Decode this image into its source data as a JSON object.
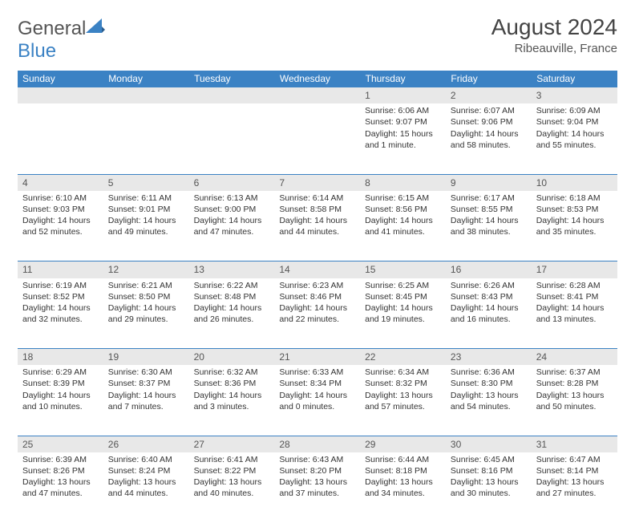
{
  "logo": {
    "text1": "General",
    "text2": "Blue"
  },
  "title": "August 2024",
  "location": "Ribeauville, France",
  "headers": [
    "Sunday",
    "Monday",
    "Tuesday",
    "Wednesday",
    "Thursday",
    "Friday",
    "Saturday"
  ],
  "colors": {
    "header_bg": "#3b82c4",
    "header_text": "#ffffff",
    "daynum_bg": "#e8e8e8",
    "border": "#3b82c4",
    "body_text": "#333333"
  },
  "weeks": [
    [
      null,
      null,
      null,
      null,
      {
        "n": "1",
        "sr": "Sunrise: 6:06 AM",
        "ss": "Sunset: 9:07 PM",
        "dl": "Daylight: 15 hours and 1 minute."
      },
      {
        "n": "2",
        "sr": "Sunrise: 6:07 AM",
        "ss": "Sunset: 9:06 PM",
        "dl": "Daylight: 14 hours and 58 minutes."
      },
      {
        "n": "3",
        "sr": "Sunrise: 6:09 AM",
        "ss": "Sunset: 9:04 PM",
        "dl": "Daylight: 14 hours and 55 minutes."
      }
    ],
    [
      {
        "n": "4",
        "sr": "Sunrise: 6:10 AM",
        "ss": "Sunset: 9:03 PM",
        "dl": "Daylight: 14 hours and 52 minutes."
      },
      {
        "n": "5",
        "sr": "Sunrise: 6:11 AM",
        "ss": "Sunset: 9:01 PM",
        "dl": "Daylight: 14 hours and 49 minutes."
      },
      {
        "n": "6",
        "sr": "Sunrise: 6:13 AM",
        "ss": "Sunset: 9:00 PM",
        "dl": "Daylight: 14 hours and 47 minutes."
      },
      {
        "n": "7",
        "sr": "Sunrise: 6:14 AM",
        "ss": "Sunset: 8:58 PM",
        "dl": "Daylight: 14 hours and 44 minutes."
      },
      {
        "n": "8",
        "sr": "Sunrise: 6:15 AM",
        "ss": "Sunset: 8:56 PM",
        "dl": "Daylight: 14 hours and 41 minutes."
      },
      {
        "n": "9",
        "sr": "Sunrise: 6:17 AM",
        "ss": "Sunset: 8:55 PM",
        "dl": "Daylight: 14 hours and 38 minutes."
      },
      {
        "n": "10",
        "sr": "Sunrise: 6:18 AM",
        "ss": "Sunset: 8:53 PM",
        "dl": "Daylight: 14 hours and 35 minutes."
      }
    ],
    [
      {
        "n": "11",
        "sr": "Sunrise: 6:19 AM",
        "ss": "Sunset: 8:52 PM",
        "dl": "Daylight: 14 hours and 32 minutes."
      },
      {
        "n": "12",
        "sr": "Sunrise: 6:21 AM",
        "ss": "Sunset: 8:50 PM",
        "dl": "Daylight: 14 hours and 29 minutes."
      },
      {
        "n": "13",
        "sr": "Sunrise: 6:22 AM",
        "ss": "Sunset: 8:48 PM",
        "dl": "Daylight: 14 hours and 26 minutes."
      },
      {
        "n": "14",
        "sr": "Sunrise: 6:23 AM",
        "ss": "Sunset: 8:46 PM",
        "dl": "Daylight: 14 hours and 22 minutes."
      },
      {
        "n": "15",
        "sr": "Sunrise: 6:25 AM",
        "ss": "Sunset: 8:45 PM",
        "dl": "Daylight: 14 hours and 19 minutes."
      },
      {
        "n": "16",
        "sr": "Sunrise: 6:26 AM",
        "ss": "Sunset: 8:43 PM",
        "dl": "Daylight: 14 hours and 16 minutes."
      },
      {
        "n": "17",
        "sr": "Sunrise: 6:28 AM",
        "ss": "Sunset: 8:41 PM",
        "dl": "Daylight: 14 hours and 13 minutes."
      }
    ],
    [
      {
        "n": "18",
        "sr": "Sunrise: 6:29 AM",
        "ss": "Sunset: 8:39 PM",
        "dl": "Daylight: 14 hours and 10 minutes."
      },
      {
        "n": "19",
        "sr": "Sunrise: 6:30 AM",
        "ss": "Sunset: 8:37 PM",
        "dl": "Daylight: 14 hours and 7 minutes."
      },
      {
        "n": "20",
        "sr": "Sunrise: 6:32 AM",
        "ss": "Sunset: 8:36 PM",
        "dl": "Daylight: 14 hours and 3 minutes."
      },
      {
        "n": "21",
        "sr": "Sunrise: 6:33 AM",
        "ss": "Sunset: 8:34 PM",
        "dl": "Daylight: 14 hours and 0 minutes."
      },
      {
        "n": "22",
        "sr": "Sunrise: 6:34 AM",
        "ss": "Sunset: 8:32 PM",
        "dl": "Daylight: 13 hours and 57 minutes."
      },
      {
        "n": "23",
        "sr": "Sunrise: 6:36 AM",
        "ss": "Sunset: 8:30 PM",
        "dl": "Daylight: 13 hours and 54 minutes."
      },
      {
        "n": "24",
        "sr": "Sunrise: 6:37 AM",
        "ss": "Sunset: 8:28 PM",
        "dl": "Daylight: 13 hours and 50 minutes."
      }
    ],
    [
      {
        "n": "25",
        "sr": "Sunrise: 6:39 AM",
        "ss": "Sunset: 8:26 PM",
        "dl": "Daylight: 13 hours and 47 minutes."
      },
      {
        "n": "26",
        "sr": "Sunrise: 6:40 AM",
        "ss": "Sunset: 8:24 PM",
        "dl": "Daylight: 13 hours and 44 minutes."
      },
      {
        "n": "27",
        "sr": "Sunrise: 6:41 AM",
        "ss": "Sunset: 8:22 PM",
        "dl": "Daylight: 13 hours and 40 minutes."
      },
      {
        "n": "28",
        "sr": "Sunrise: 6:43 AM",
        "ss": "Sunset: 8:20 PM",
        "dl": "Daylight: 13 hours and 37 minutes."
      },
      {
        "n": "29",
        "sr": "Sunrise: 6:44 AM",
        "ss": "Sunset: 8:18 PM",
        "dl": "Daylight: 13 hours and 34 minutes."
      },
      {
        "n": "30",
        "sr": "Sunrise: 6:45 AM",
        "ss": "Sunset: 8:16 PM",
        "dl": "Daylight: 13 hours and 30 minutes."
      },
      {
        "n": "31",
        "sr": "Sunrise: 6:47 AM",
        "ss": "Sunset: 8:14 PM",
        "dl": "Daylight: 13 hours and 27 minutes."
      }
    ]
  ]
}
